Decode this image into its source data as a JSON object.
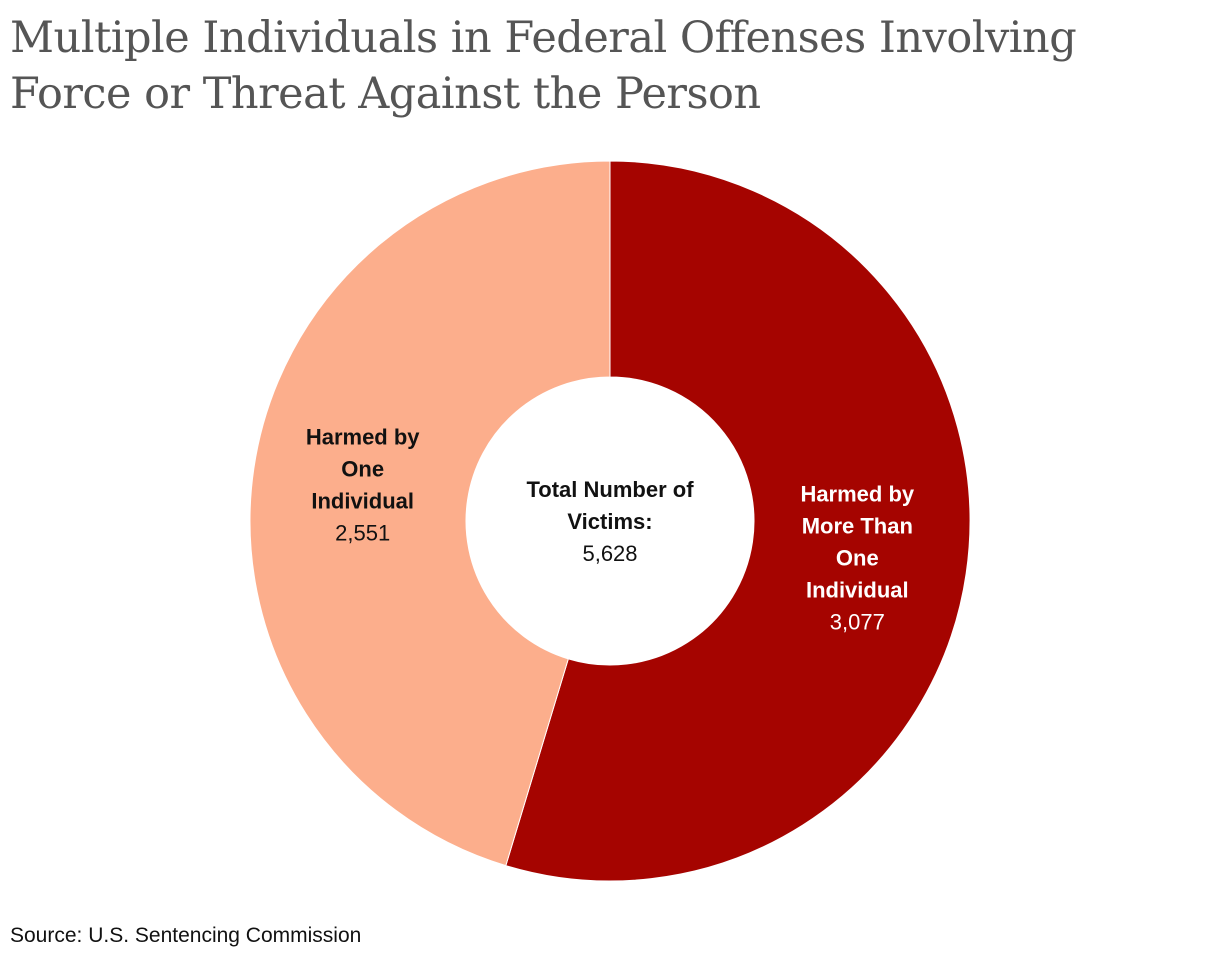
{
  "title_lines": [
    "Multiple Individuals in Federal Offenses Involving",
    "Force or Threat Against the Person"
  ],
  "source": "Source: U.S. Sentencing Commission",
  "chart_data": {
    "type": "pie",
    "donut": true,
    "categories": [
      "Harmed by More Than One Individual",
      "Harmed by One Individual"
    ],
    "values": [
      3077,
      2551
    ],
    "colors": [
      "#a50400",
      "#fcae8c"
    ],
    "label_lines": [
      [
        "Harmed by",
        "More Than",
        "One",
        "Individual"
      ],
      [
        "Harmed by",
        "One",
        "Individual"
      ]
    ],
    "value_labels": [
      "3,077",
      "2,551"
    ],
    "label_colors": [
      "#ffffff",
      "#111111"
    ],
    "center_label_lines": [
      "Total Number of",
      "Victims:"
    ],
    "center_value": "5,628",
    "start_angle": "12 o'clock",
    "direction": "clockwise"
  }
}
